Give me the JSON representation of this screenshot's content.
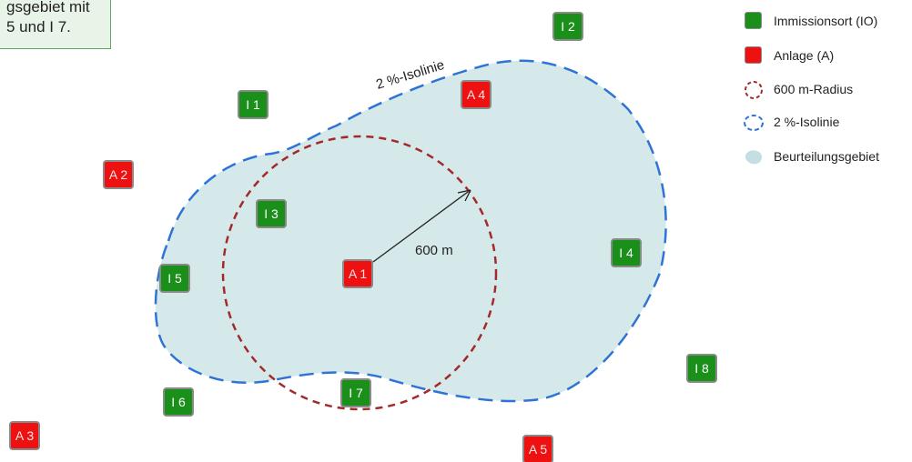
{
  "callout": {
    "line1": "gsgebiet mit",
    "line2": "5 und I 7."
  },
  "isoline_label": "2 %-Isolinie",
  "radius_label": "600 m",
  "markers": [
    {
      "id": "I 1",
      "kind": "io"
    },
    {
      "id": "I 2",
      "kind": "io"
    },
    {
      "id": "I 3",
      "kind": "io"
    },
    {
      "id": "I 4",
      "kind": "io"
    },
    {
      "id": "I 5",
      "kind": "io"
    },
    {
      "id": "I 6",
      "kind": "io"
    },
    {
      "id": "I 7",
      "kind": "io"
    },
    {
      "id": "I 8",
      "kind": "io"
    },
    {
      "id": "A 1",
      "kind": "anlage"
    },
    {
      "id": "A 2",
      "kind": "anlage"
    },
    {
      "id": "A 3",
      "kind": "anlage"
    },
    {
      "id": "A 4",
      "kind": "anlage"
    },
    {
      "id": "A 5",
      "kind": "anlage"
    }
  ],
  "legend": {
    "io": "Immissionsort (IO)",
    "anlage": "Anlage (A)",
    "radius": "600 m-Radius",
    "isolinie": "2 %-Isolinie",
    "gebiet": "Beurteilungsgebiet"
  },
  "colors": {
    "io_fill": "#1a8f1a",
    "anlage_fill": "#ee1111",
    "area_fill": "#d6e9ea",
    "isoline": "#2f73d6",
    "radius": "#a32a2a"
  }
}
